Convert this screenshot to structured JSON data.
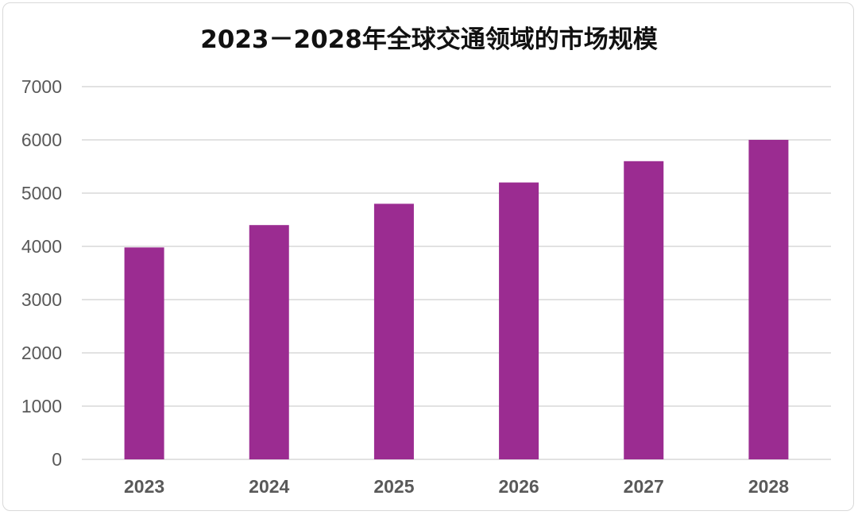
{
  "chart_data": {
    "type": "bar",
    "title": "2023－2028年全球交通领域的市场规模",
    "categories": [
      "2023",
      "2024",
      "2025",
      "2026",
      "2027",
      "2028"
    ],
    "values": [
      3980,
      4400,
      4800,
      5200,
      5600,
      6000
    ],
    "xlabel": "",
    "ylabel": "",
    "ylim": [
      0,
      7000
    ],
    "yticks": [
      0,
      1000,
      2000,
      3000,
      4000,
      5000,
      6000,
      7000
    ],
    "grid": true,
    "legend": "none",
    "bar_color": "#9b2c91",
    "grid_color": "#d9d9d9"
  }
}
